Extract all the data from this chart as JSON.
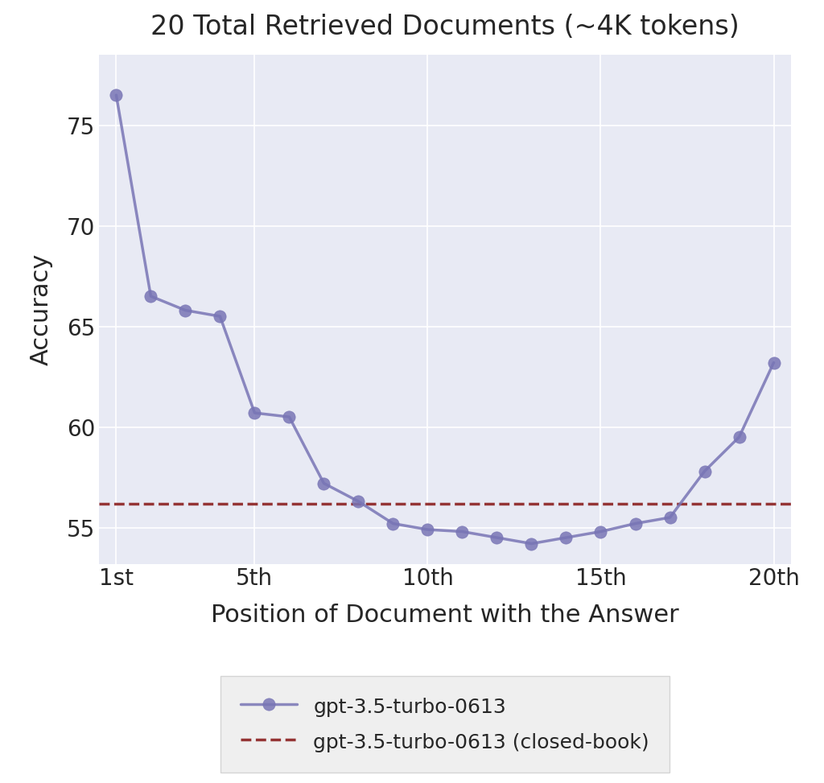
{
  "title": "20 Total Retrieved Documents (ⓜ4K tokens)",
  "title_text": "20 Total Retrieved Documents (~4K tokens)",
  "xlabel": "Position of Document with the Answer",
  "ylabel": "Accuracy",
  "x_values": [
    1,
    2,
    3,
    4,
    5,
    6,
    7,
    8,
    9,
    10,
    11,
    12,
    13,
    14,
    15,
    16,
    17,
    18,
    19,
    20
  ],
  "y_values": [
    76.5,
    66.5,
    65.8,
    65.5,
    60.7,
    60.5,
    57.2,
    56.3,
    55.2,
    54.9,
    54.8,
    54.5,
    54.2,
    54.5,
    54.8,
    55.2,
    55.5,
    57.8,
    59.5,
    63.2
  ],
  "closed_book_value": 56.2,
  "line_color": "#7875b5",
  "closed_book_color": "#8b2020",
  "background_color": "#e8eaf4",
  "fig_background": "#ffffff",
  "x_ticks": [
    1,
    5,
    10,
    15,
    20
  ],
  "x_tick_labels": [
    "1st",
    "5th",
    "10th",
    "15th",
    "20th"
  ],
  "y_ticks": [
    55,
    60,
    65,
    70,
    75
  ],
  "ylim": [
    53.2,
    78.5
  ],
  "xlim": [
    0.5,
    20.5
  ],
  "line_label": "gpt-3.5-turbo-0613",
  "closed_book_label": "gpt-3.5-turbo-0613 (closed-book)",
  "title_fontsize": 24,
  "axis_label_fontsize": 22,
  "tick_fontsize": 20,
  "legend_fontsize": 18,
  "marker_size": 11,
  "line_width": 2.5,
  "legend_bg": "#ebebeb",
  "legend_edge": "#cccccc"
}
